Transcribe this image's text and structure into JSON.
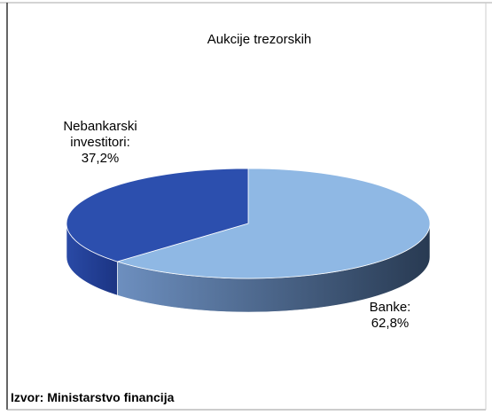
{
  "chart_data": {
    "type": "pie3d",
    "title": "Aukcije trezorskih",
    "categories": [
      "Banke:",
      "Nebankarski investitori:"
    ],
    "values": [
      62.8,
      37.2
    ],
    "value_labels": [
      "62,8%",
      "37,2%"
    ],
    "colors": [
      "#8fb8e4",
      "#2c4fae"
    ],
    "source": "Izvor: Ministarstvo financija"
  }
}
